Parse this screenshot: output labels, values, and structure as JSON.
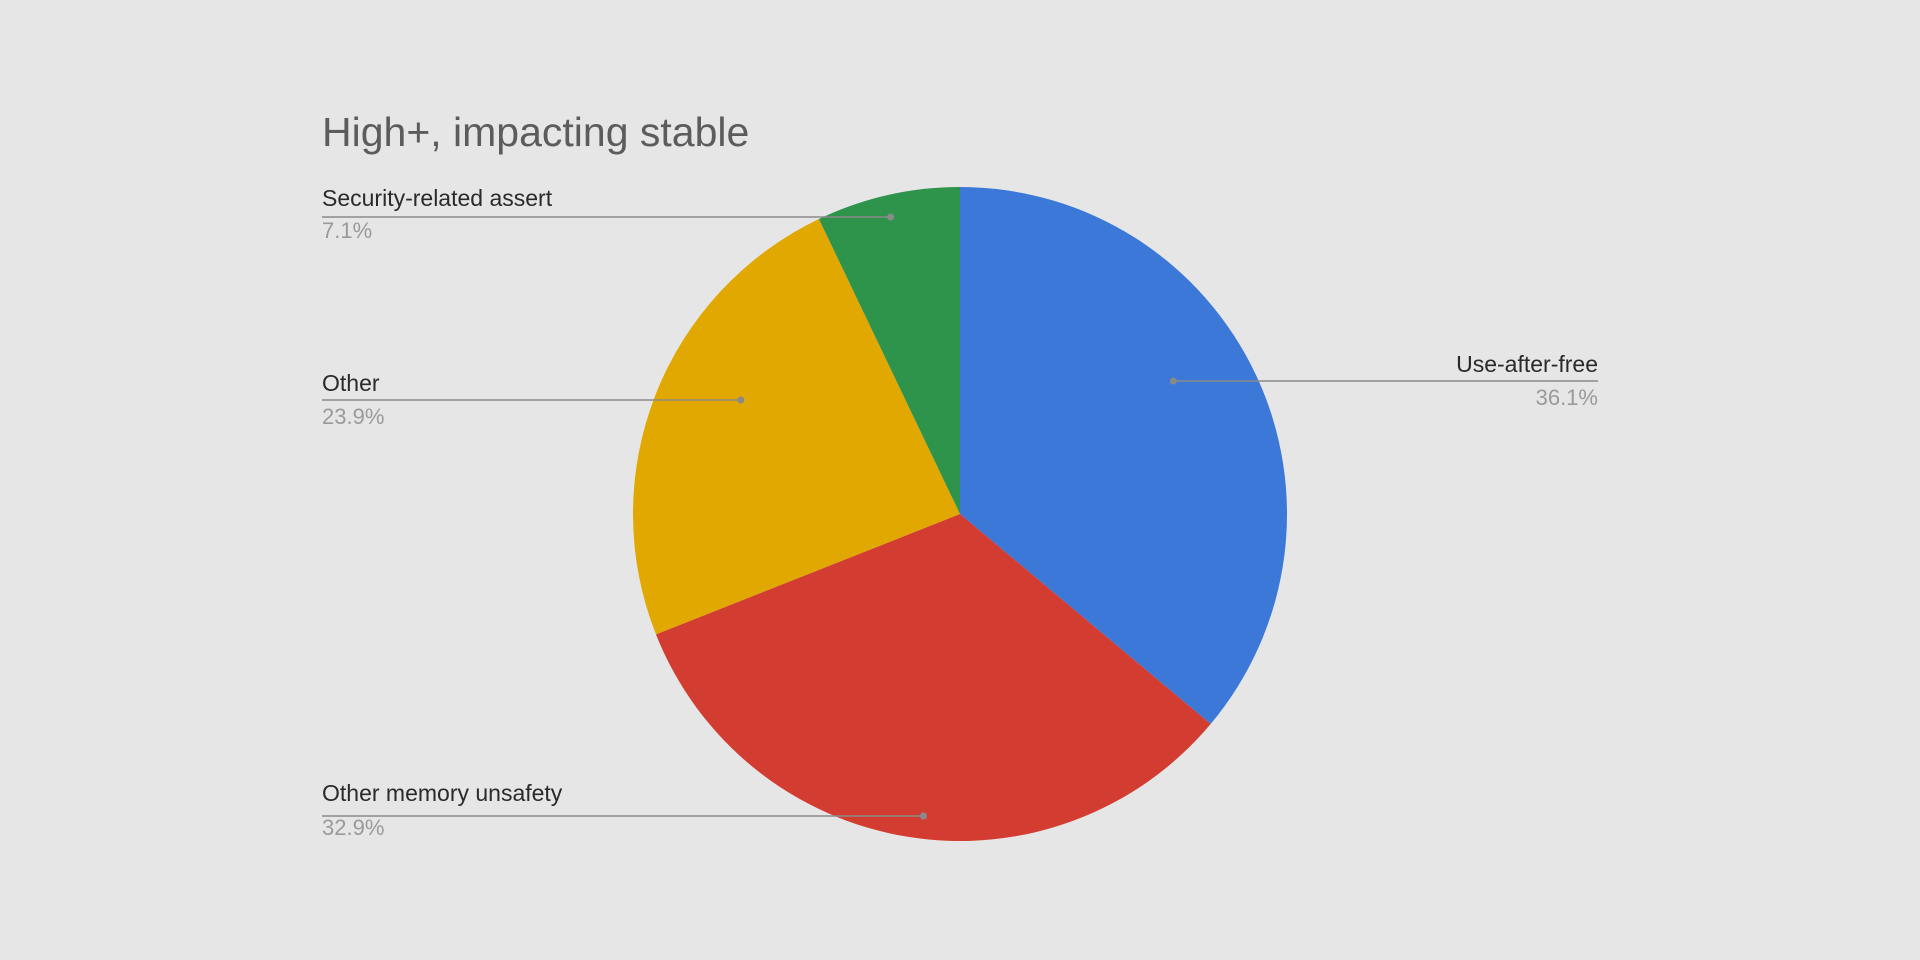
{
  "chart_data": {
    "type": "pie",
    "title": "High+, impacting stable",
    "slices": [
      {
        "label": "Use-after-free",
        "value": 36.1,
        "value_label": "36.1%",
        "color": "#3b78d8"
      },
      {
        "label": "Other memory unsafety",
        "value": 32.9,
        "value_label": "32.9%",
        "color": "#d33c30"
      },
      {
        "label": "Other",
        "value": 23.9,
        "value_label": "23.9%",
        "color": "#e0a800"
      },
      {
        "label": "Security-related assert",
        "value": 7.1,
        "value_label": "7.1%",
        "color": "#2e944b"
      }
    ],
    "start_angle": "12 o'clock",
    "direction": "clockwise",
    "legend": "none (leader-line labels)"
  }
}
